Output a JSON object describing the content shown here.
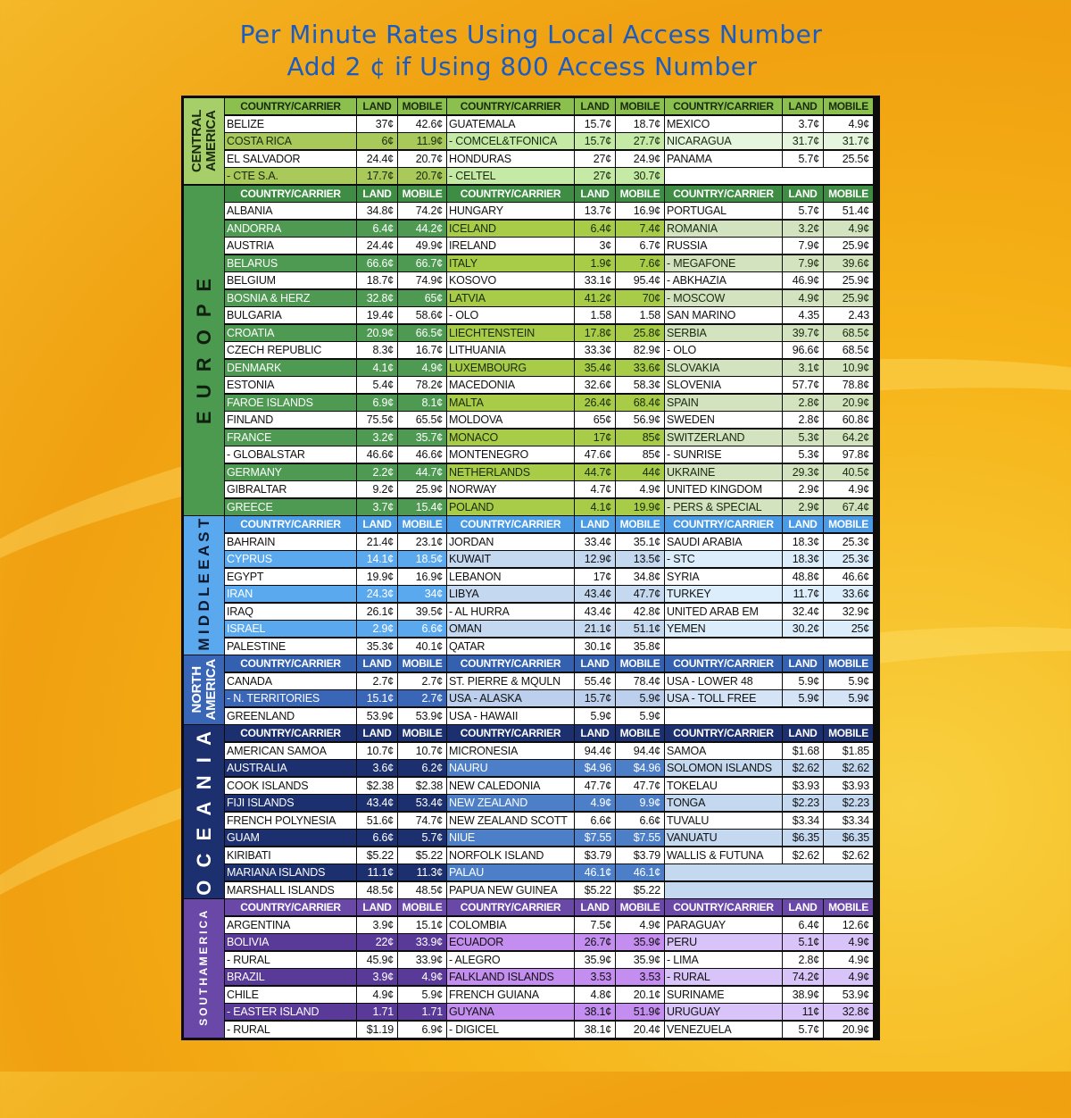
{
  "title": {
    "line1": "Per Minute Rates Using Local Access Number",
    "line2": "Add 2 ¢ if Using 800 Access Number"
  },
  "column_headers": {
    "name": "COUNTRY/CARRIER",
    "land": "LAND",
    "mobile": "MOBILE"
  },
  "sections": [
    {
      "label": "CENTRAL AMERICA",
      "colors": {
        "label": "#a6cf6a",
        "label_text": "#1a2a10",
        "header": "#8cc04e",
        "header_text": "#1a2a10",
        "shade": [
          "#a9c95a",
          "#c4eaa5",
          "#e6f5dd"
        ],
        "shade_text": [
          "#1a2a10",
          "#1a2a10",
          "#1a2a10"
        ]
      },
      "groups": [
        [
          [
            "BELIZE",
            "37¢",
            "42.6¢"
          ],
          [
            "COSTA RICA",
            "6¢",
            "11.9¢"
          ],
          [
            "EL SALVADOR",
            "24.4¢",
            "20.7¢"
          ],
          [
            " - CTE S.A.",
            "17.7¢",
            "20.7¢"
          ]
        ],
        [
          [
            "GUATEMALA",
            "15.7¢",
            "18.7¢"
          ],
          [
            " - COMCEL&TFONICA",
            "15.7¢",
            "27.7¢"
          ],
          [
            "HONDURAS",
            "27¢",
            "24.9¢"
          ],
          [
            " - CELTEL",
            "27¢",
            "30.7¢"
          ]
        ],
        [
          [
            "MEXICO",
            "3.7¢",
            "4.9¢"
          ],
          [
            "NICARAGUA",
            "31.7¢",
            "31.7¢"
          ],
          [
            "PANAMA",
            "5.7¢",
            "25.5¢"
          ]
        ]
      ]
    },
    {
      "label": "E U R O P E",
      "colors": {
        "label": "#4c9a50",
        "label_text": "#10200f",
        "header": "#3f8c45",
        "header_text": "#ffffff",
        "shade": [
          "#4e9a52",
          "#a8cc48",
          "#d3e3c0"
        ],
        "shade_text": [
          "#ffffff",
          "#1a2a10",
          "#1a2a10"
        ]
      },
      "groups": [
        [
          [
            "ALBANIA",
            "34.8¢",
            "74.2¢"
          ],
          [
            "ANDORRA",
            "6.4¢",
            "44.2¢"
          ],
          [
            "AUSTRIA",
            "24.4¢",
            "49.9¢"
          ],
          [
            "BELARUS",
            "66.6¢",
            "66.7¢"
          ],
          [
            "BELGIUM",
            "18.7¢",
            "74.9¢"
          ],
          [
            "BOSNIA & HERZ",
            "32.8¢",
            "65¢"
          ],
          [
            "BULGARIA",
            "19.4¢",
            "58.6¢"
          ],
          [
            "CROATIA",
            "20.9¢",
            "66.5¢"
          ],
          [
            "CZECH REPUBLIC",
            "8.3¢",
            "16.7¢"
          ],
          [
            "DENMARK",
            "4.1¢",
            "4.9¢"
          ],
          [
            "ESTONIA",
            "5.4¢",
            "78.2¢"
          ],
          [
            "FAROE ISLANDS",
            "6.9¢",
            "8.1¢"
          ],
          [
            "FINLAND",
            "75.5¢",
            "65.5¢"
          ],
          [
            "FRANCE",
            "3.2¢",
            "35.7¢"
          ],
          [
            " - GLOBALSTAR",
            "46.6¢",
            "46.6¢"
          ],
          [
            "GERMANY",
            "2.2¢",
            "44.7¢"
          ],
          [
            "GIBRALTAR",
            "9.2¢",
            "25.9¢"
          ],
          [
            "GREECE",
            "3.7¢",
            "15.4¢"
          ]
        ],
        [
          [
            "HUNGARY",
            "13.7¢",
            "16.9¢"
          ],
          [
            "ICELAND",
            "6.4¢",
            "7.4¢"
          ],
          [
            "IRELAND",
            "3¢",
            "6.7¢"
          ],
          [
            "ITALY",
            "1.9¢",
            "7.6¢"
          ],
          [
            "KOSOVO",
            "33.1¢",
            "95.4¢"
          ],
          [
            "LATVIA",
            "41.2¢",
            "70¢"
          ],
          [
            " - OLO",
            "1.58",
            "1.58"
          ],
          [
            "LIECHTENSTEIN",
            "17.8¢",
            "25.8¢"
          ],
          [
            "LITHUANIA",
            "33.3¢",
            "82.9¢"
          ],
          [
            "LUXEMBOURG",
            "35.4¢",
            "33.6¢"
          ],
          [
            "MACEDONIA",
            "32.6¢",
            "58.3¢"
          ],
          [
            "MALTA",
            "26.4¢",
            "68.4¢"
          ],
          [
            "MOLDOVA",
            "65¢",
            "56.9¢"
          ],
          [
            "MONACO",
            "17¢",
            "85¢"
          ],
          [
            "MONTENEGRO",
            "47.6¢",
            "85¢"
          ],
          [
            "NETHERLANDS",
            "44.7¢",
            "44¢"
          ],
          [
            "NORWAY",
            "4.7¢",
            "4.9¢"
          ],
          [
            "POLAND",
            "4.1¢",
            "19.9¢"
          ]
        ],
        [
          [
            "PORTUGAL",
            "5.7¢",
            "51.4¢"
          ],
          [
            "ROMANIA",
            "3.2¢",
            "4.9¢"
          ],
          [
            "RUSSIA",
            "7.9¢",
            "25.9¢"
          ],
          [
            " - MEGAFONE",
            "7.9¢",
            "39.6¢"
          ],
          [
            " - ABKHAZIA",
            "46.9¢",
            "25.9¢"
          ],
          [
            " - MOSCOW",
            "4.9¢",
            "25.9¢"
          ],
          [
            "SAN MARINO",
            "4.35",
            "2.43"
          ],
          [
            "SERBIA",
            "39.7¢",
            "68.5¢"
          ],
          [
            " - OLO",
            "96.6¢",
            "68.5¢"
          ],
          [
            "SLOVAKIA",
            "3.1¢",
            "10.9¢"
          ],
          [
            "SLOVENIA",
            "57.7¢",
            "78.8¢"
          ],
          [
            "SPAIN",
            "2.8¢",
            "20.9¢"
          ],
          [
            "SWEDEN",
            "2.8¢",
            "60.8¢"
          ],
          [
            "SWITZERLAND",
            "5.3¢",
            "64.2¢"
          ],
          [
            " - SUNRISE",
            "5.3¢",
            "97.8¢"
          ],
          [
            "UKRAINE",
            "29.3¢",
            "40.5¢"
          ],
          [
            "UNITED KINGDOM",
            "2.9¢",
            "4.9¢"
          ],
          [
            " - PERS & SPECIAL",
            "2.9¢",
            "67.4¢"
          ]
        ]
      ]
    },
    {
      "label": "M I D D L E   E A S T",
      "colors": {
        "label": "#5aa8ee",
        "label_text": "#0d1a2e",
        "header": "#4a9ae6",
        "header_text": "#ffffff",
        "shade": [
          "#5aa8ee",
          "#c4d8f0",
          "#dceefb"
        ],
        "shade_text": [
          "#ffffff",
          "#111111",
          "#111111"
        ]
      },
      "groups": [
        [
          [
            "BAHRAIN",
            "21.4¢",
            "23.1¢"
          ],
          [
            "CYPRUS",
            "14.1¢",
            "18.5¢"
          ],
          [
            "EGYPT",
            "19.9¢",
            "16.9¢"
          ],
          [
            "IRAN",
            "24.3¢",
            "34¢"
          ],
          [
            "IRAQ",
            "26.1¢",
            "39.5¢"
          ],
          [
            "ISRAEL",
            "2.9¢",
            "6.6¢"
          ],
          [
            "PALESTINE",
            "35.3¢",
            "40.1¢"
          ]
        ],
        [
          [
            "JORDAN",
            "33.4¢",
            "35.1¢"
          ],
          [
            "KUWAIT",
            "12.9¢",
            "13.5¢"
          ],
          [
            "LEBANON",
            "17¢",
            "34.8¢"
          ],
          [
            "LIBYA",
            "43.4¢",
            "47.7¢"
          ],
          [
            " - AL HURRA",
            "43.4¢",
            "42.8¢"
          ],
          [
            "OMAN",
            "21.1¢",
            "51.1¢"
          ],
          [
            "QATAR",
            "30.1¢",
            "35.8¢"
          ]
        ],
        [
          [
            "SAUDI ARABIA",
            "18.3¢",
            "25.3¢"
          ],
          [
            " - STC",
            "18.3¢",
            "25.3¢"
          ],
          [
            "SYRIA",
            "48.8¢",
            "46.6¢"
          ],
          [
            "TURKEY",
            "11.7¢",
            "33.6¢"
          ],
          [
            "UNITED ARAB EM",
            "32.4¢",
            "32.9¢"
          ],
          [
            "YEMEN",
            "30.2¢",
            "25¢"
          ]
        ]
      ]
    },
    {
      "label": "NORTH AMERICA",
      "colors": {
        "label": "#3a66b8",
        "label_text": "#ffffff",
        "header": "#3460b0",
        "header_text": "#ffffff",
        "shade": [
          "#3a66b8",
          "#bcd0ee",
          "#d4e4f6"
        ],
        "shade_text": [
          "#ffffff",
          "#111111",
          "#111111"
        ]
      },
      "groups": [
        [
          [
            "CANADA",
            "2.7¢",
            "2.7¢"
          ],
          [
            " - N. TERRITORIES",
            "15.1¢",
            "2.7¢"
          ],
          [
            "GREENLAND",
            "53.9¢",
            "53.9¢"
          ]
        ],
        [
          [
            "ST. PIERRE & MQULN",
            "55.4¢",
            "78.4¢"
          ],
          [
            "USA - ALASKA",
            "15.7¢",
            "5.9¢"
          ],
          [
            "USA - HAWAII",
            "5.9¢",
            "5.9¢"
          ]
        ],
        [
          [
            "USA - LOWER 48",
            "5.9¢",
            "5.9¢"
          ],
          [
            "USA - TOLL FREE",
            "5.9¢",
            "5.9¢"
          ]
        ]
      ]
    },
    {
      "label": "O C E A N I A",
      "colors": {
        "label": "#1c2f6e",
        "label_text": "#ffffff",
        "header": "#1c2f6e",
        "header_text": "#ffffff",
        "shade": [
          "#1c2f6e",
          "#4d7fc8",
          "#c4d8f0"
        ],
        "shade_text": [
          "#ffffff",
          "#ffffff",
          "#111111"
        ]
      },
      "groups": [
        [
          [
            "AMERICAN SAMOA",
            "10.7¢",
            "10.7¢"
          ],
          [
            "AUSTRALIA",
            "3.6¢",
            "6.2¢"
          ],
          [
            "COOK ISLANDS",
            "$2.38",
            "$2.38"
          ],
          [
            "FIJI ISLANDS",
            "43.4¢",
            "53.4¢"
          ],
          [
            "FRENCH POLYNESIA",
            "51.6¢",
            "74.7¢"
          ],
          [
            "GUAM",
            "6.6¢",
            "5.7¢"
          ],
          [
            "KIRIBATI",
            "$5.22",
            "$5.22"
          ],
          [
            "MARIANA ISLANDS",
            "11.1¢",
            "11.3¢"
          ],
          [
            "MARSHALL ISLANDS",
            "48.5¢",
            "48.5¢"
          ]
        ],
        [
          [
            "MICRONESIA",
            "94.4¢",
            "94.4¢"
          ],
          [
            "NAURU",
            "$4.96",
            "$4.96"
          ],
          [
            "NEW CALEDONIA",
            "47.7¢",
            "47.7¢"
          ],
          [
            "NEW ZEALAND",
            "4.9¢",
            "9.9¢"
          ],
          [
            "NEW ZEALAND SCOTT",
            "6.6¢",
            "6.6¢"
          ],
          [
            "NIUE",
            "$7.55",
            "$7.55"
          ],
          [
            "NORFOLK ISLAND",
            "$3.79",
            "$3.79"
          ],
          [
            "PALAU",
            "46.1¢",
            "46.1¢"
          ],
          [
            "PAPUA NEW GUINEA",
            "$5.22",
            "$5.22"
          ]
        ],
        [
          [
            "SAMOA",
            "$1.68",
            "$1.85"
          ],
          [
            "SOLOMON ISLANDS",
            "$2.62",
            "$2.62"
          ],
          [
            "TOKELAU",
            "$3.93",
            "$3.93"
          ],
          [
            "TONGA",
            "$2.23",
            "$2.23"
          ],
          [
            "TUVALU",
            "$3.34",
            "$3.34"
          ],
          [
            "VANUATU",
            "$6.35",
            "$6.35"
          ],
          [
            "WALLIS & FUTUNA",
            "$2.62",
            "$2.62"
          ]
        ]
      ]
    },
    {
      "label": "S O U T H     A M E R I C A",
      "colors": {
        "label": "#6a48a8",
        "label_text": "#ffffff",
        "header": "#6a48a8",
        "header_text": "#ffffff",
        "shade": [
          "#5a3a98",
          "#c48ef0",
          "#d8c4f8"
        ],
        "shade_text": [
          "#ffffff",
          "#111111",
          "#111111"
        ]
      },
      "groups": [
        [
          [
            "ARGENTINA",
            "3.9¢",
            "15.1¢"
          ],
          [
            "BOLIVIA",
            "22¢",
            "33.9¢"
          ],
          [
            " - RURAL",
            "45.9¢",
            "33.9¢"
          ],
          [
            "BRAZIL",
            "3.9¢",
            "4.9¢"
          ],
          [
            "CHILE",
            "4.9¢",
            "5.9¢"
          ],
          [
            " - EASTER ISLAND",
            "1.71",
            "1.71"
          ],
          [
            " - RURAL",
            "$1.19",
            "6.9¢"
          ]
        ],
        [
          [
            "COLOMBIA",
            "7.5¢",
            "4.9¢"
          ],
          [
            "ECUADOR",
            "26.7¢",
            "35.9¢"
          ],
          [
            " - ALEGRO",
            "35.9¢",
            "35.9¢"
          ],
          [
            "FALKLAND ISLANDS",
            "3.53",
            "3.53"
          ],
          [
            "FRENCH GUIANA",
            "4.8¢",
            "20.1¢"
          ],
          [
            "GUYANA",
            "38.1¢",
            "51.9¢"
          ],
          [
            " - DIGICEL",
            "38.1¢",
            "20.4¢"
          ]
        ],
        [
          [
            "PARAGUAY",
            "6.4¢",
            "12.6¢"
          ],
          [
            "PERU",
            "5.1¢",
            "4.9¢"
          ],
          [
            " - LIMA",
            "2.8¢",
            "4.9¢"
          ],
          [
            " - RURAL",
            "74.2¢",
            "4.9¢"
          ],
          [
            "SURINAME",
            "38.9¢",
            "53.9¢"
          ],
          [
            "URUGUAY",
            "11¢",
            "32.8¢"
          ],
          [
            "VENEZUELA",
            "5.7¢",
            "20.9¢"
          ]
        ]
      ]
    }
  ]
}
